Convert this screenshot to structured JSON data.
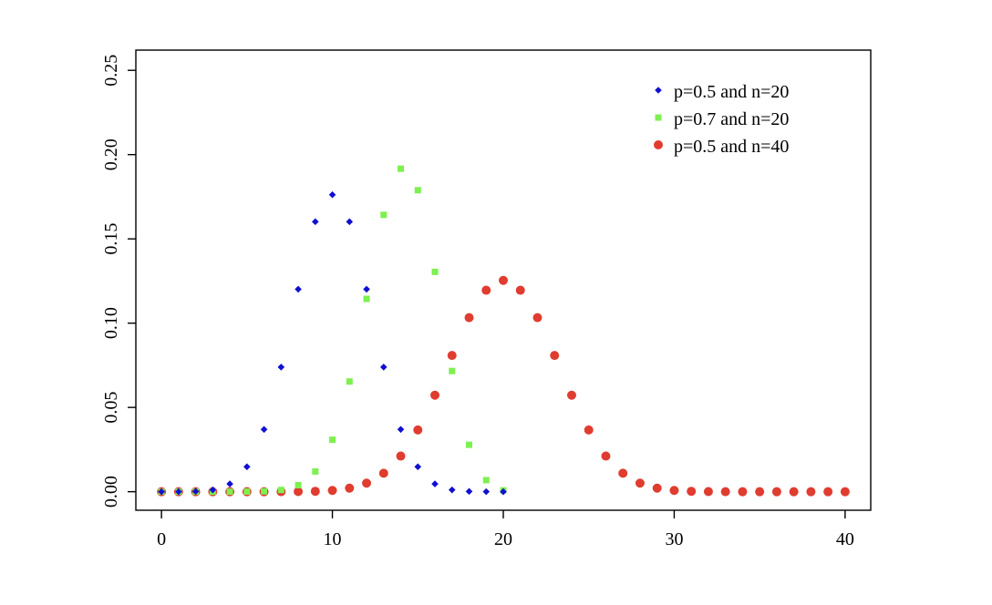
{
  "chart_data": {
    "type": "scatter",
    "title": "",
    "xlabel": "",
    "ylabel": "",
    "xlim": [
      -1.5,
      41.5
    ],
    "ylim": [
      -0.011,
      0.262
    ],
    "x_ticks": [
      0,
      10,
      20,
      30,
      40
    ],
    "x_tick_labels": [
      "0",
      "10",
      "20",
      "30",
      "40"
    ],
    "y_ticks": [
      0.0,
      0.05,
      0.1,
      0.15,
      0.2,
      0.25
    ],
    "y_tick_labels": [
      "0.00",
      "0.05",
      "0.10",
      "0.15",
      "0.20",
      "0.25"
    ],
    "grid": false,
    "legend_position": "top-right",
    "series": [
      {
        "name": "p=0.5 and n=20",
        "color": "#1010d0",
        "marker": "diamond",
        "x": [
          0,
          1,
          2,
          3,
          4,
          5,
          6,
          7,
          8,
          9,
          10,
          11,
          12,
          13,
          14,
          15,
          16,
          17,
          18,
          19,
          20
        ],
        "y": [
          1e-06,
          1.9e-05,
          0.000181,
          0.001087,
          0.004621,
          0.014786,
          0.036964,
          0.073929,
          0.120134,
          0.160179,
          0.176197,
          0.160179,
          0.120134,
          0.073929,
          0.036964,
          0.014786,
          0.004621,
          0.001087,
          0.000181,
          1.9e-05,
          1e-06
        ]
      },
      {
        "name": "p=0.7 and n=20",
        "color": "#7ef050",
        "marker": "square",
        "x": [
          0,
          1,
          2,
          3,
          4,
          5,
          6,
          7,
          8,
          9,
          10,
          11,
          12,
          13,
          14,
          15,
          16,
          17,
          18,
          19,
          20
        ],
        "y": [
          0,
          0,
          0,
          0,
          5e-06,
          3.7e-05,
          0.000218,
          0.001018,
          0.003859,
          0.012007,
          0.030817,
          0.06537,
          0.114397,
          0.164262,
          0.191639,
          0.178863,
          0.130421,
          0.071604,
          0.027846,
          0.006839,
          0.000798
        ]
      },
      {
        "name": "p=0.5 and n=40",
        "color": "#e03c30",
        "marker": "circle",
        "x": [
          0,
          1,
          2,
          3,
          4,
          5,
          6,
          7,
          8,
          9,
          10,
          11,
          12,
          13,
          14,
          15,
          16,
          17,
          18,
          19,
          20,
          21,
          22,
          23,
          24,
          25,
          26,
          27,
          28,
          29,
          30,
          31,
          32,
          33,
          34,
          35,
          36,
          37,
          38,
          39,
          40
        ],
        "y": [
          0,
          0,
          0,
          0,
          0,
          0,
          0,
          1.7e-05,
          7e-05,
          0.000249,
          0.000772,
          0.002105,
          0.005088,
          0.010962,
          0.02114,
          0.036642,
          0.057252,
          0.080827,
          0.103279,
          0.119533,
          0.125371,
          0.119533,
          0.103279,
          0.080827,
          0.057252,
          0.036642,
          0.02114,
          0.010962,
          0.005088,
          0.002105,
          0.000772,
          0.000249,
          7e-05,
          1.7e-05,
          0,
          0,
          0,
          0,
          0,
          0,
          0
        ]
      }
    ]
  }
}
